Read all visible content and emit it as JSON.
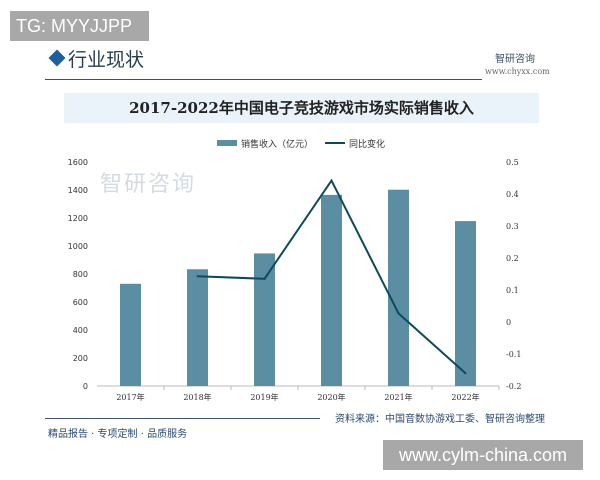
{
  "overlay_tag": "TG: MYYJJPP",
  "overlay_url": "www.cylm-china.com",
  "header": {
    "section_title": "行业现状",
    "brand": "智研咨询",
    "brand_url": "www.chyxx.com"
  },
  "footer": {
    "source": "资料来源：中国音数协游戏工委、智研咨询整理",
    "slogan": "精品报告 · 专项定制 · 品质服务"
  },
  "watermark": "智研咨询",
  "colors": {
    "bar": "#5b8ea3",
    "line": "#0f4a5c"
  },
  "chart_data": {
    "type": "bar+line",
    "title": "2017-2022年中国电子竞技游戏市场实际销售收入",
    "categories": [
      "2017年",
      "2018年",
      "2019年",
      "2020年",
      "2021年",
      "2022年"
    ],
    "series": [
      {
        "name": "销售收入（亿元）",
        "type": "bar",
        "axis": "left",
        "values": [
          730,
          834,
          947,
          1365,
          1402,
          1178
        ]
      },
      {
        "name": "同比变化",
        "type": "line",
        "axis": "right",
        "values": [
          null,
          0.143,
          0.135,
          0.442,
          0.027,
          -0.16
        ]
      }
    ],
    "ylim_left": [
      0,
      1600
    ],
    "yticks_left": [
      "0",
      "200",
      "400",
      "600",
      "800",
      "1000",
      "1200",
      "1400",
      "1600"
    ],
    "ylim_right": [
      -0.2,
      0.5
    ],
    "yticks_right": [
      "-0.2",
      "-0.1",
      "0",
      "0.1",
      "0.2",
      "0.3",
      "0.4",
      "0.5"
    ],
    "legend": "top",
    "grid": false
  }
}
